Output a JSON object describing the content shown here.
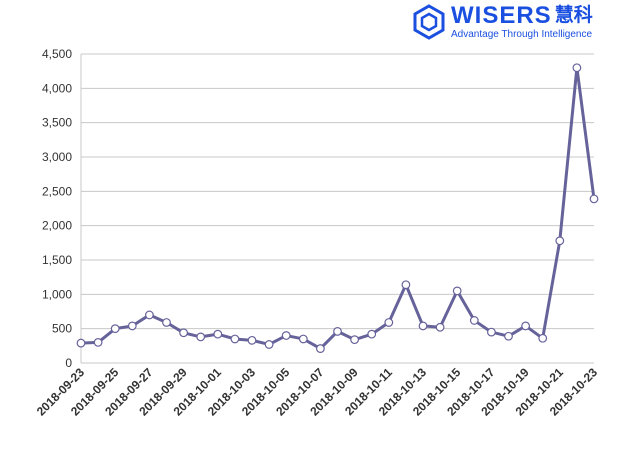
{
  "logo": {
    "brand": "WISERS",
    "brand_cn": "慧科",
    "tagline": "Advantage Through Intelligence",
    "color": "#1a4fe0"
  },
  "chart_data": {
    "type": "line",
    "title": "",
    "xlabel": "",
    "ylabel": "",
    "ylim": [
      0,
      4500
    ],
    "yticks": [
      0,
      500,
      1000,
      1500,
      2000,
      2500,
      3000,
      3500,
      4000,
      4500
    ],
    "ytick_labels": [
      "0",
      "500",
      "1,000",
      "1,500",
      "2,000",
      "2,500",
      "3,000",
      "3,500",
      "4,000",
      "4,500"
    ],
    "grid": "horizontal",
    "line_color": "#66629a",
    "x": [
      "2018-09-23",
      "2018-09-24",
      "2018-09-25",
      "2018-09-26",
      "2018-09-27",
      "2018-09-28",
      "2018-09-29",
      "2018-09-30",
      "2018-10-01",
      "2018-10-02",
      "2018-10-03",
      "2018-10-04",
      "2018-10-05",
      "2018-10-06",
      "2018-10-07",
      "2018-10-08",
      "2018-10-09",
      "2018-10-10",
      "2018-10-11",
      "2018-10-12",
      "2018-10-13",
      "2018-10-14",
      "2018-10-15",
      "2018-10-16",
      "2018-10-17",
      "2018-10-18",
      "2018-10-19",
      "2018-10-20",
      "2018-10-21",
      "2018-10-22",
      "2018-10-23"
    ],
    "xtick_labels": [
      "2018-09-23",
      "2018-09-25",
      "2018-09-27",
      "2018-09-29",
      "2018-10-01",
      "2018-10-03",
      "2018-10-05",
      "2018-10-07",
      "2018-10-09",
      "2018-10-11",
      "2018-10-13",
      "2018-10-15",
      "2018-10-17",
      "2018-10-19",
      "2018-10-21",
      "2018-10-23"
    ],
    "series": [
      {
        "values": [
          290,
          300,
          500,
          540,
          700,
          590,
          440,
          380,
          420,
          350,
          330,
          270,
          400,
          350,
          210,
          460,
          340,
          420,
          590,
          1140,
          540,
          520,
          1050,
          620,
          450,
          390,
          540,
          360,
          1780,
          4300,
          2390
        ]
      }
    ]
  }
}
